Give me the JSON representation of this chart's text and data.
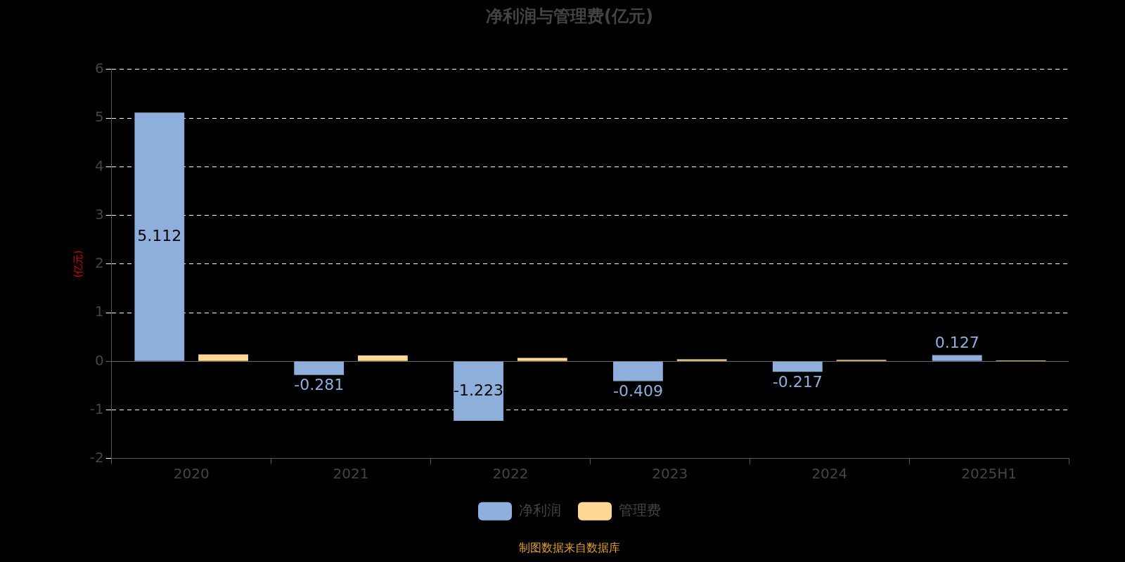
{
  "chart_data": {
    "type": "bar",
    "title": "净利润与管理费(亿元)",
    "ylabel": "(亿元)",
    "categories": [
      "2020",
      "2021",
      "2022",
      "2023",
      "2024",
      "2025H1"
    ],
    "series": [
      {
        "name": "净利润",
        "color": "#8eaedb",
        "values": [
          5.112,
          -0.281,
          -1.223,
          -0.409,
          -0.217,
          0.127
        ],
        "value_labels": [
          "5.112",
          "-0.281",
          "-1.223",
          "-0.409",
          "-0.217",
          "0.127"
        ]
      },
      {
        "name": "管理费",
        "color": "#ffd896",
        "values": [
          0.14,
          0.12,
          0.07,
          0.04,
          0.03,
          0.02
        ]
      }
    ],
    "ylim": [
      -2,
      6
    ],
    "yticks": [
      -2,
      -1,
      0,
      1,
      2,
      3,
      4,
      5,
      6
    ],
    "grid": "y",
    "legend": "bottom",
    "annotations": [
      "制图数据来自数据库"
    ]
  }
}
